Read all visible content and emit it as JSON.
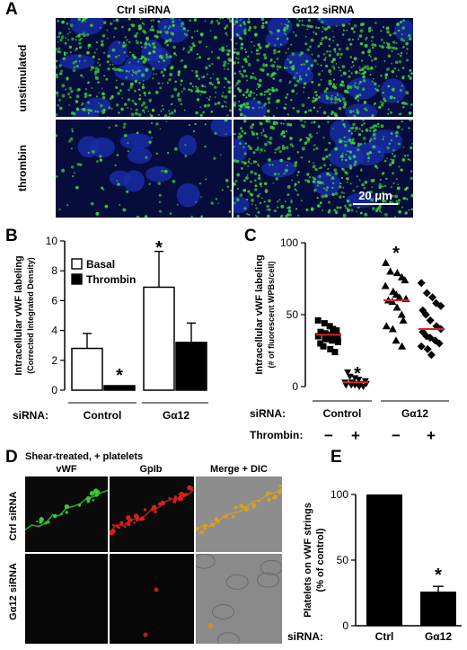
{
  "panel_labels": {
    "A": "A",
    "B": "B",
    "C": "C",
    "D": "D",
    "E": "E"
  },
  "panelA": {
    "col_headers": [
      "Ctrl siRNA",
      "Gα12 siRNA"
    ],
    "row_labels": [
      "unstimulated",
      "thrombin"
    ],
    "scale_bar": "20 μm"
  },
  "panelD": {
    "title": "Shear-treated, + platelets",
    "col_headers": [
      "vWF",
      "GpIb",
      "Merge + DIC"
    ],
    "row_labels": [
      "Ctrl siRNA",
      "Gα12 siRNA"
    ]
  },
  "chart_data": [
    {
      "panel": "B",
      "type": "bar",
      "ylabel": "Intracellular vWF labeling",
      "ylabel2": "(Corrected Integrated Density)",
      "ylim": [
        0,
        10
      ],
      "yticks": [
        0,
        2,
        4,
        6,
        8,
        10
      ],
      "groups": [
        "Control",
        "Gα12"
      ],
      "group_prefix": "siRNA:",
      "legend": [
        "Basal",
        "Thrombin"
      ],
      "series": [
        {
          "name": "Basal",
          "values": [
            2.8,
            6.9
          ],
          "errors": [
            1.0,
            2.4
          ],
          "color": "#ffffff"
        },
        {
          "name": "Thrombin",
          "values": [
            0.3,
            3.2
          ],
          "errors": [
            0,
            1.3
          ],
          "color": "#000000"
        }
      ],
      "significance": [
        "*",
        "*"
      ]
    },
    {
      "panel": "C",
      "type": "scatter",
      "ylabel": "Intracellular vWF labeling",
      "ylabel2": "(# of fluorescent WPBs/cell)",
      "ylim": [
        0,
        100
      ],
      "yticks": [
        0,
        50,
        100
      ],
      "groups": [
        "Control",
        "Gα12"
      ],
      "row_labels": [
        "siRNA:",
        "Thrombin:"
      ],
      "thrombin": [
        "−",
        "+",
        "−",
        "+"
      ],
      "means": [
        36,
        3,
        60,
        40
      ],
      "points": [
        [
          46,
          44,
          42,
          40,
          39,
          38,
          37,
          36,
          36,
          35,
          35,
          34,
          33,
          32,
          31,
          30,
          28,
          26,
          24
        ],
        [
          10,
          7,
          6,
          5,
          4,
          3,
          3,
          2,
          2,
          2,
          1,
          1,
          1,
          0,
          0
        ],
        [
          86,
          80,
          79,
          76,
          74,
          70,
          66,
          64,
          62,
          61,
          60,
          59,
          55,
          50,
          46,
          42,
          40,
          32,
          28
        ],
        [
          72,
          65,
          62,
          58,
          56,
          53,
          50,
          46,
          42,
          40,
          38,
          35,
          34,
          32,
          30,
          28,
          26,
          22
        ]
      ],
      "significance": [
        "*",
        "*"
      ]
    },
    {
      "panel": "E",
      "type": "bar",
      "ylabel": "Platelets on vWF strings",
      "ylabel2": "(% of control)",
      "ylim": [
        0,
        100
      ],
      "yticks": [
        0,
        50,
        100
      ],
      "categories": [
        "Ctrl",
        "Gα12"
      ],
      "prefix": "siRNA:",
      "values": [
        100,
        26
      ],
      "errors": [
        0,
        4
      ],
      "significance": "*"
    }
  ]
}
